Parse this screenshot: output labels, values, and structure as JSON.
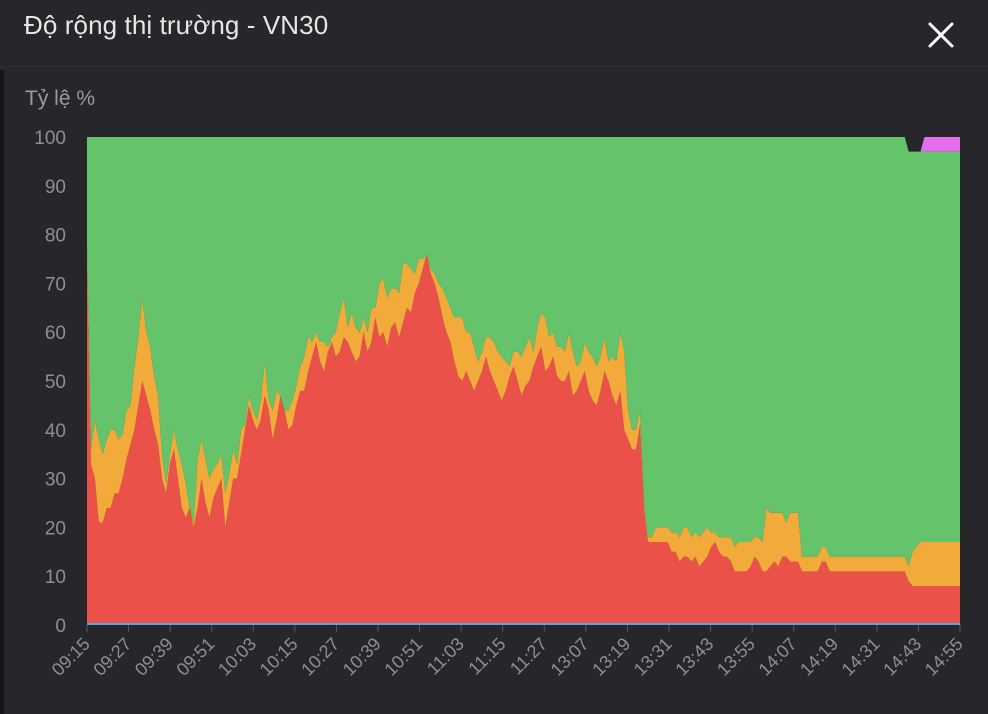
{
  "header": {
    "title": "Độ rộng thị trường - VN30",
    "close_icon": "close-icon"
  },
  "colors": {
    "panel_bg": "#27272b",
    "up": "#65c46b",
    "unchanged": "#f2ab3b",
    "down": "#ea5249",
    "ceiling": "#e46de8",
    "floor": "#4fa8e0",
    "tick_text": "#8e8e94"
  },
  "chart_data": {
    "type": "area",
    "stacked": true,
    "ylabel": "Tỷ lệ %",
    "ylim": [
      0,
      100
    ],
    "yticks": [
      0,
      10,
      20,
      30,
      40,
      50,
      60,
      70,
      80,
      90,
      100
    ],
    "xticks": [
      "09:15",
      "09:27",
      "09:39",
      "09:51",
      "10:03",
      "10:15",
      "10:27",
      "10:39",
      "10:51",
      "11:03",
      "11:15",
      "11:27",
      "13:07",
      "13:19",
      "13:31",
      "13:43",
      "13:55",
      "14:07",
      "14:19",
      "14:31",
      "14:43",
      "14:55"
    ],
    "legend": "none",
    "grid": false,
    "series": [
      {
        "key": "down",
        "values": [
          74,
          33,
          30,
          21,
          21,
          24,
          24,
          27,
          27,
          30,
          34,
          37,
          40,
          45,
          50,
          47,
          44,
          40,
          37,
          30,
          27,
          33,
          36,
          30,
          24,
          22,
          24,
          20,
          24,
          30,
          25,
          22,
          26,
          28,
          30,
          20,
          25,
          30,
          30,
          35,
          40,
          45,
          42,
          40,
          42,
          47,
          44,
          38,
          42,
          47,
          44,
          40,
          41,
          45,
          48,
          48,
          52,
          55,
          58,
          54,
          52,
          56,
          58,
          55,
          56,
          59,
          58,
          56,
          54,
          55,
          60,
          56,
          58,
          63,
          59,
          60,
          57,
          61,
          62,
          59,
          62,
          65,
          64,
          68,
          70,
          73,
          76,
          72,
          70,
          67,
          63,
          60,
          58,
          54,
          51,
          50,
          52,
          50,
          48,
          50,
          52,
          55,
          52,
          50,
          48,
          46,
          48,
          51,
          53,
          50,
          47,
          49,
          50,
          53,
          55,
          57,
          52,
          53,
          55,
          51,
          50,
          50,
          52,
          47,
          48,
          50,
          52,
          48,
          46,
          45,
          48,
          52,
          50,
          47,
          45,
          48,
          40,
          38,
          36,
          36,
          41,
          24,
          17,
          17,
          17,
          17,
          17,
          17,
          15,
          15,
          13,
          14,
          14,
          13,
          14,
          12,
          13,
          14,
          16,
          17,
          15,
          14,
          14,
          13,
          11,
          11,
          11,
          11,
          12,
          14,
          13,
          11,
          11,
          12,
          13,
          12,
          14,
          14,
          13,
          13,
          13,
          11,
          11,
          11,
          11,
          11,
          13,
          13,
          11,
          11,
          11,
          11,
          11,
          11,
          11,
          11,
          11,
          11,
          11,
          11,
          11,
          11,
          11,
          11,
          11,
          11,
          11,
          11,
          9,
          8,
          8,
          8,
          8,
          8,
          8,
          8,
          8,
          8,
          8,
          8,
          8,
          8
        ]
      },
      {
        "key": "unchanged",
        "values": [
          4,
          3,
          12,
          17,
          14,
          14,
          16,
          13,
          11,
          9,
          10,
          8,
          13,
          14,
          17,
          13,
          13,
          11,
          10,
          5,
          2,
          2,
          4,
          6,
          9,
          7,
          0,
          1,
          10,
          8,
          9,
          8,
          6,
          5,
          5,
          7,
          6,
          6,
          3,
          5,
          1,
          2,
          2,
          2,
          4,
          7,
          2,
          6,
          6,
          0,
          0,
          4,
          5,
          4,
          5,
          7,
          7,
          3,
          2,
          4,
          6,
          1,
          1,
          5,
          8,
          8,
          3,
          8,
          7,
          5,
          3,
          4,
          7,
          2,
          11,
          11,
          10,
          8,
          7,
          9,
          12,
          9,
          9,
          4,
          5,
          2,
          0,
          1,
          2,
          3,
          6,
          7,
          7,
          9,
          12,
          13,
          8,
          10,
          9,
          4,
          4,
          4,
          7,
          8,
          8,
          9,
          6,
          2,
          3,
          6,
          8,
          8,
          9,
          3,
          6,
          7,
          11,
          6,
          5,
          6,
          7,
          6,
          8,
          9,
          5,
          4,
          6,
          8,
          9,
          8,
          7,
          7,
          4,
          8,
          9,
          12,
          16,
          6,
          4,
          4,
          3,
          1,
          1,
          1,
          3,
          3,
          3,
          3,
          4,
          4,
          5,
          6,
          6,
          5,
          5,
          6,
          6,
          6,
          3,
          2,
          3,
          4,
          4,
          5,
          5,
          6,
          6,
          6,
          5,
          4,
          5,
          6,
          13,
          11,
          10,
          11,
          9,
          7,
          10,
          10,
          10,
          3,
          3,
          3,
          3,
          3,
          3,
          3,
          3,
          3,
          3,
          3,
          3,
          3,
          3,
          3,
          3,
          3,
          3,
          3,
          3,
          3,
          3,
          3,
          3,
          3,
          3,
          3,
          3,
          7,
          8,
          9,
          9,
          9,
          9,
          9,
          9,
          9,
          9,
          9,
          9,
          9
        ]
      },
      {
        "key": "up",
        "values": [
          22,
          64,
          58,
          62,
          65,
          62,
          60,
          60,
          62,
          61,
          56,
          55,
          47,
          41,
          33,
          40,
          43,
          49,
          53,
          65,
          71,
          65,
          60,
          64,
          67,
          71,
          76,
          79,
          66,
          62,
          66,
          70,
          68,
          67,
          65,
          73,
          69,
          64,
          67,
          60,
          59,
          53,
          56,
          58,
          54,
          46,
          54,
          56,
          52,
          53,
          56,
          56,
          54,
          51,
          47,
          45,
          41,
          42,
          40,
          42,
          42,
          43,
          41,
          40,
          36,
          33,
          39,
          36,
          39,
          40,
          37,
          40,
          35,
          35,
          30,
          29,
          33,
          31,
          31,
          32,
          26,
          26,
          27,
          28,
          25,
          25,
          24,
          27,
          28,
          30,
          31,
          33,
          35,
          37,
          37,
          37,
          40,
          40,
          43,
          46,
          44,
          41,
          41,
          42,
          44,
          45,
          46,
          47,
          44,
          44,
          45,
          43,
          41,
          44,
          39,
          36,
          37,
          41,
          40,
          43,
          43,
          44,
          40,
          44,
          47,
          46,
          42,
          44,
          45,
          47,
          45,
          41,
          46,
          45,
          46,
          40,
          44,
          56,
          60,
          60,
          56,
          75,
          82,
          82,
          80,
          80,
          80,
          80,
          81,
          81,
          82,
          80,
          80,
          82,
          81,
          82,
          81,
          80,
          81,
          81,
          82,
          82,
          82,
          82,
          84,
          83,
          83,
          83,
          83,
          82,
          82,
          83,
          76,
          77,
          77,
          77,
          77,
          79,
          77,
          77,
          77,
          86,
          86,
          86,
          86,
          86,
          84,
          84,
          86,
          86,
          86,
          86,
          86,
          86,
          86,
          86,
          86,
          86,
          86,
          86,
          86,
          86,
          86,
          86,
          86,
          86,
          86,
          86,
          85,
          82,
          81,
          80,
          80,
          80,
          80,
          80,
          80,
          80,
          80,
          80,
          80,
          80
        ]
      },
      {
        "key": "ceiling",
        "values": [
          0,
          0,
          0,
          0,
          0,
          0,
          0,
          0,
          0,
          0,
          0,
          0,
          0,
          0,
          0,
          0,
          0,
          0,
          0,
          0,
          0,
          0,
          0,
          0,
          0,
          0,
          0,
          0,
          0,
          0,
          0,
          0,
          0,
          0,
          0,
          0,
          0,
          0,
          0,
          0,
          0,
          0,
          0,
          0,
          0,
          0,
          0,
          0,
          0,
          0,
          0,
          0,
          0,
          0,
          0,
          0,
          0,
          0,
          0,
          0,
          0,
          0,
          0,
          0,
          0,
          0,
          0,
          0,
          0,
          0,
          0,
          0,
          0,
          0,
          0,
          0,
          0,
          0,
          0,
          0,
          0,
          0,
          0,
          0,
          0,
          0,
          0,
          0,
          0,
          0,
          0,
          0,
          0,
          0,
          0,
          0,
          0,
          0,
          0,
          0,
          0,
          0,
          0,
          0,
          0,
          0,
          0,
          0,
          0,
          0,
          0,
          0,
          0,
          0,
          0,
          0,
          0,
          0,
          0,
          0,
          0,
          0,
          0,
          0,
          0,
          0,
          0,
          0,
          0,
          0,
          0,
          0,
          0,
          0,
          0,
          0,
          0,
          0,
          0,
          0,
          0,
          0,
          0,
          0,
          0,
          0,
          0,
          0,
          0,
          0,
          0,
          0,
          0,
          0,
          0,
          0,
          0,
          0,
          0,
          0,
          0,
          0,
          0,
          0,
          0,
          0,
          0,
          0,
          0,
          0,
          0,
          0,
          0,
          0,
          0,
          0,
          0,
          0,
          0,
          0,
          0,
          0,
          0,
          0,
          0,
          0,
          0,
          0,
          0,
          0,
          0,
          0,
          0,
          0,
          0,
          0,
          0,
          0,
          0,
          0,
          0,
          0,
          0,
          0,
          0,
          0,
          0,
          0,
          0,
          0,
          0,
          0,
          3,
          3,
          3,
          3,
          3,
          3,
          3,
          3,
          3,
          3,
          3,
          3,
          3,
          3
        ]
      }
    ]
  }
}
